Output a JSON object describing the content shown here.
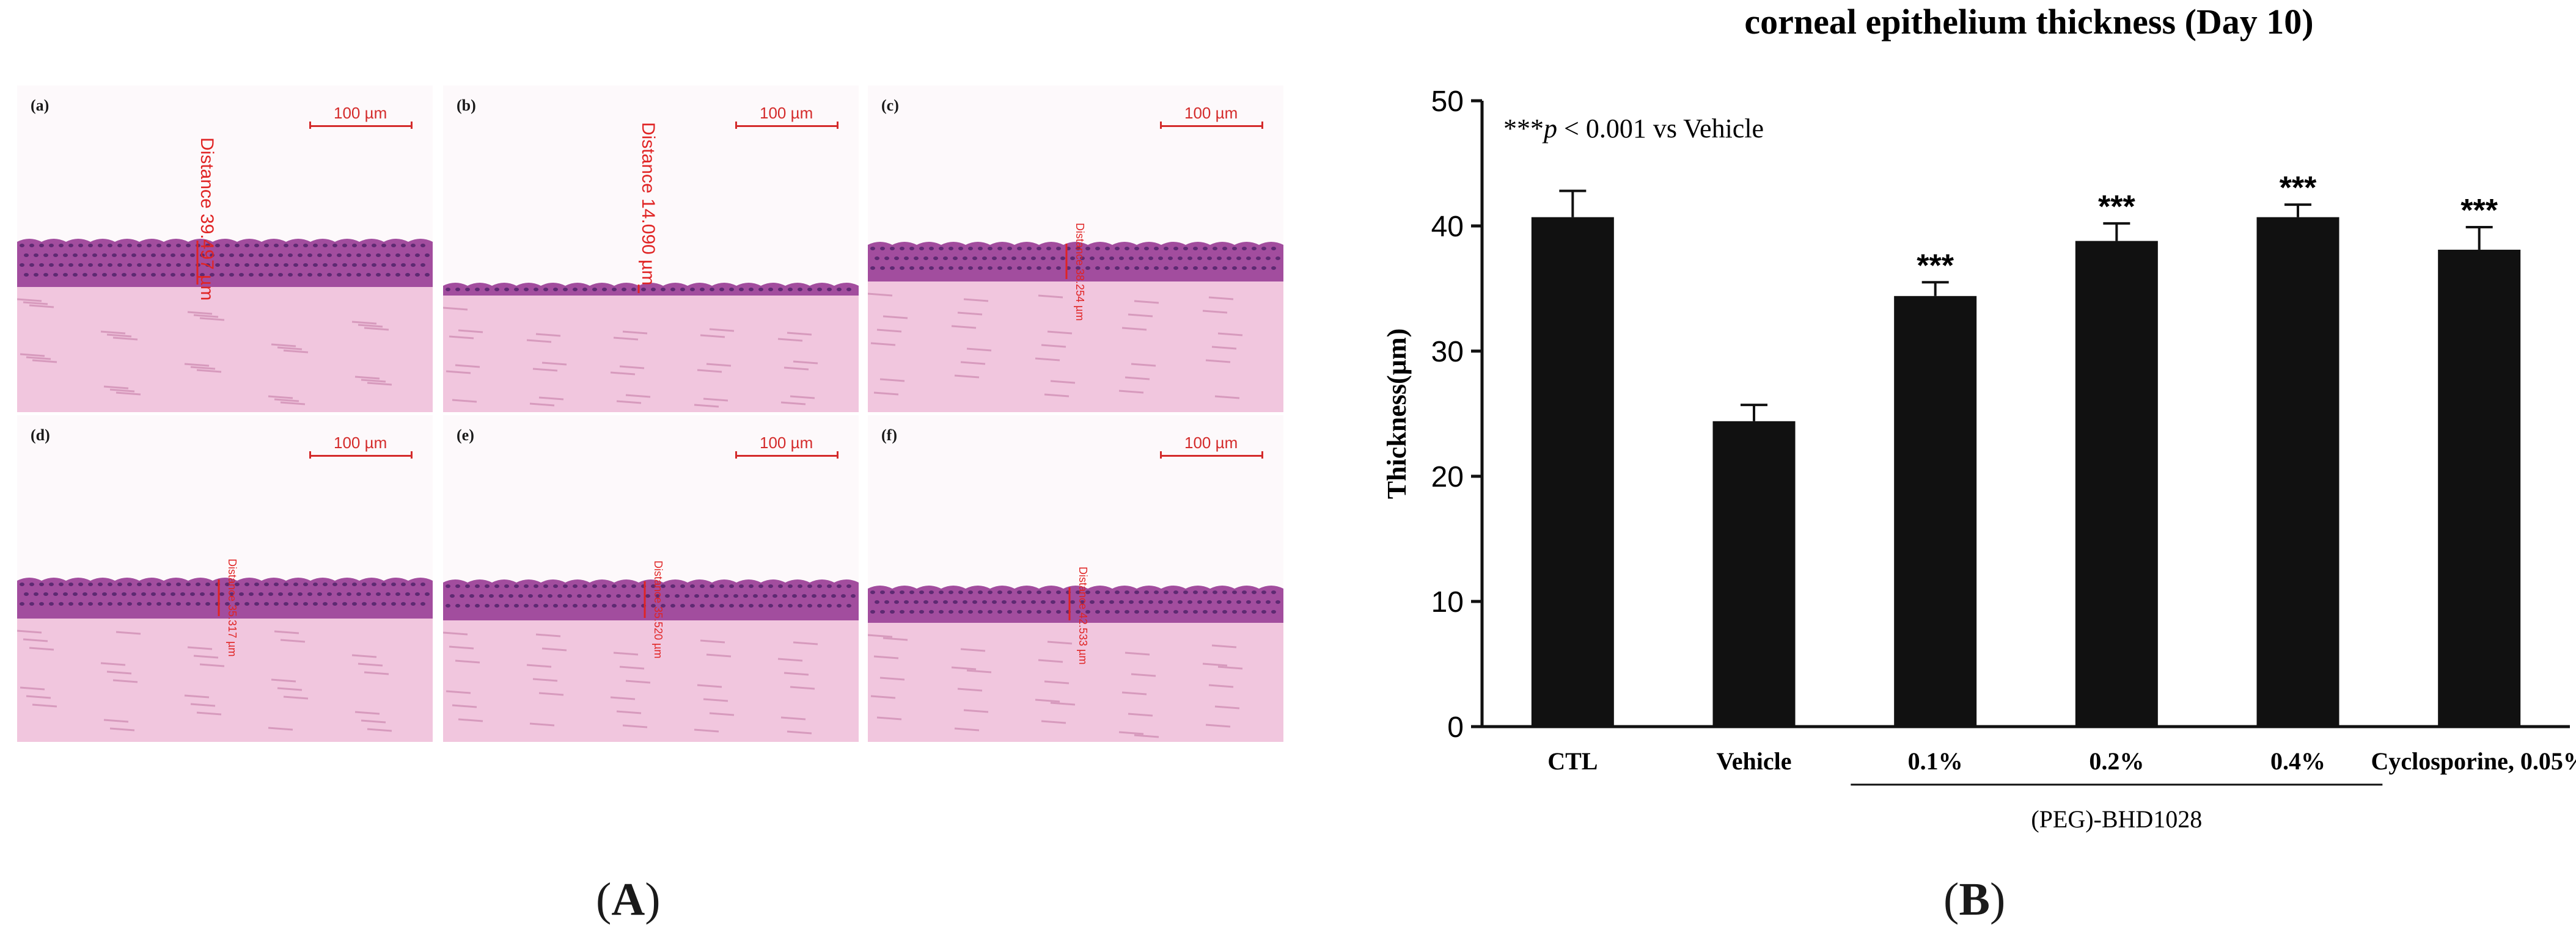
{
  "panel_a": {
    "caption": "A",
    "panels": [
      {
        "label": "(a)",
        "scale": "100 µm",
        "distance": "Distance 39.497 µm"
      },
      {
        "label": "(b)",
        "scale": "100 µm",
        "distance": "Distance 14.090 µm"
      },
      {
        "label": "(c)",
        "scale": "100 µm",
        "distance": "Distance 38.254 µm"
      },
      {
        "label": "(d)",
        "scale": "100 µm",
        "distance": "Distance 35.317 µm"
      },
      {
        "label": "(e)",
        "scale": "100 µm",
        "distance": "Distance 35.520 µm"
      },
      {
        "label": "(f)",
        "scale": "100 µm",
        "distance": "Distance 42.533 µm"
      }
    ]
  },
  "panel_b": {
    "caption": "B"
  },
  "colors": {
    "bar": "#111111",
    "stain_epithelium": "#a24d9e",
    "stain_stroma": "#f1c6de",
    "annotation_red": "#e02424"
  },
  "chart_data": {
    "type": "bar",
    "title": "corneal epithelium thickness (Day 10)",
    "ylabel": "Thickness(µm)",
    "xlabel": "",
    "ylim": [
      0,
      50
    ],
    "yticks": [
      0,
      10,
      20,
      30,
      40,
      50
    ],
    "categories": [
      "CTL",
      "Vehicle",
      "0.1%",
      "0.2%",
      "0.4%",
      "Cyclosporine, 0.05%"
    ],
    "values": [
      40.7,
      24.4,
      34.4,
      38.8,
      40.7,
      38.1
    ],
    "errors": [
      2.1,
      1.3,
      1.1,
      1.4,
      1.0,
      1.8
    ],
    "significance": [
      "",
      "",
      "***",
      "***",
      "***",
      "***"
    ],
    "group_label": "(PEG)-BHD1028",
    "group_span": [
      2,
      4
    ],
    "annotation_stars": "***",
    "annotation_p": "p",
    "annotation_rest": " < 0.001 vs Vehicle",
    "grid": false,
    "legend": "none"
  }
}
